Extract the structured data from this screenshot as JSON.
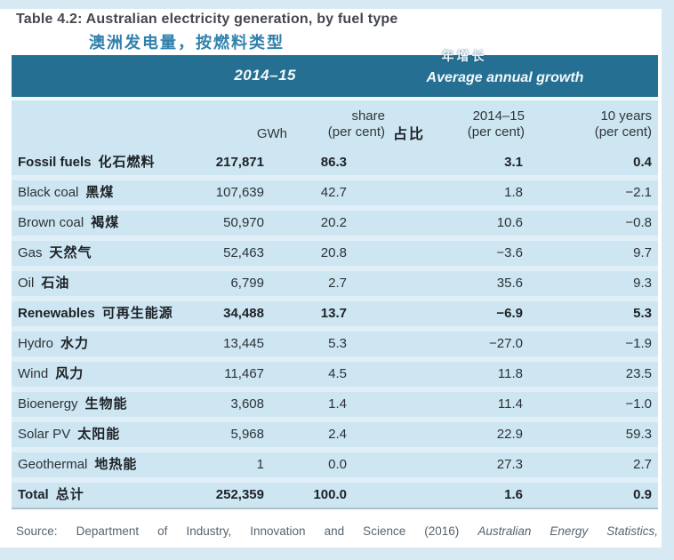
{
  "page": {
    "title": "Table 4.2: Australian electricity generation, by fuel type",
    "subtitle_zh": "澳洲发电量，按燃料类型",
    "source_prefix": "Source: Department of Industry, Innovation and Science (2016) ",
    "source_italic": "Australian Energy Statistics,"
  },
  "table": {
    "band_header": {
      "period": "2014–15",
      "growth_zh": "年增长",
      "growth_en": "Average annual growth"
    },
    "column_headers": {
      "gwh": "GWh",
      "share_line1": "share",
      "share_line2": "(per cent)",
      "share_zh": "占比",
      "growth1_line1": "2014–15",
      "growth1_line2": "(per cent)",
      "growth2_line1": "10 years",
      "growth2_line2": "(per cent)"
    },
    "rows": [
      {
        "en": "Fossil fuels",
        "zh": "化石燃料",
        "gwh": "217,871",
        "share": "86.3",
        "g1": "3.1",
        "g2": "0.4",
        "bold": true
      },
      {
        "en": "Black coal",
        "zh": "黑煤",
        "gwh": "107,639",
        "share": "42.7",
        "g1": "1.8",
        "g2": "−2.1",
        "bold": false
      },
      {
        "en": "Brown coal",
        "zh": "褐煤",
        "gwh": "50,970",
        "share": "20.2",
        "g1": "10.6",
        "g2": "−0.8",
        "bold": false
      },
      {
        "en": "Gas",
        "zh": "天然气",
        "gwh": "52,463",
        "share": "20.8",
        "g1": "−3.6",
        "g2": "9.7",
        "bold": false
      },
      {
        "en": "Oil",
        "zh": "石油",
        "gwh": "6,799",
        "share": "2.7",
        "g1": "35.6",
        "g2": "9.3",
        "bold": false
      },
      {
        "en": "Renewables",
        "zh": "可再生能源",
        "gwh": "34,488",
        "share": "13.7",
        "g1": "−6.9",
        "g2": "5.3",
        "bold": true
      },
      {
        "en": "Hydro",
        "zh": "水力",
        "gwh": "13,445",
        "share": "5.3",
        "g1": "−27.0",
        "g2": "−1.9",
        "bold": false
      },
      {
        "en": "Wind",
        "zh": "风力",
        "gwh": "11,467",
        "share": "4.5",
        "g1": "11.8",
        "g2": "23.5",
        "bold": false
      },
      {
        "en": "Bioenergy",
        "zh": "生物能",
        "gwh": "3,608",
        "share": "1.4",
        "g1": "11.4",
        "g2": "−1.0",
        "bold": false
      },
      {
        "en": "Solar PV",
        "zh": "太阳能",
        "gwh": "5,968",
        "share": "2.4",
        "g1": "22.9",
        "g2": "59.3",
        "bold": false
      },
      {
        "en": "Geothermal",
        "zh": "地热能",
        "gwh": "1",
        "share": "0.0",
        "g1": "27.3",
        "g2": "2.7",
        "bold": false
      },
      {
        "en": "Total",
        "zh": "总计",
        "gwh": "252,359",
        "share": "100.0",
        "g1": "1.6",
        "g2": "0.9",
        "bold": true
      }
    ]
  },
  "colors": {
    "band_header_bg": "#256f92",
    "row_band_bg": "#cde6f1",
    "row_gap_bg": "#e1eff8",
    "page_strip_bg": "#d7eaf4",
    "subtitle_text": "#3181ad",
    "header_text": "#ffffff",
    "body_text": "#2c3238",
    "source_text": "#57646f"
  }
}
